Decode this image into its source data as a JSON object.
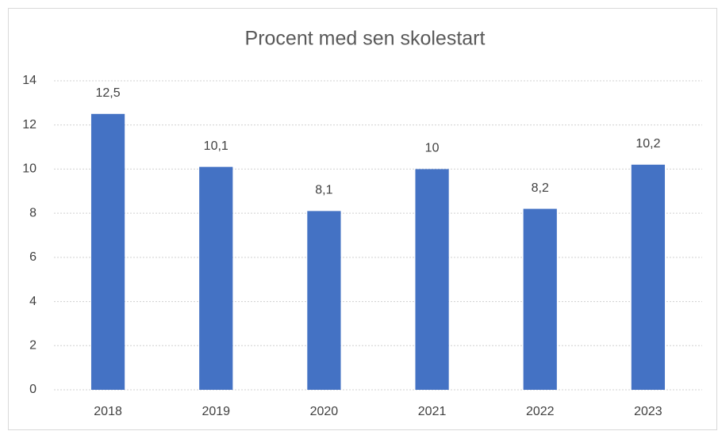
{
  "chart_data": {
    "type": "bar",
    "title": "Procent med sen skolestart",
    "categories": [
      "2018",
      "2019",
      "2020",
      "2021",
      "2022",
      "2023"
    ],
    "values": [
      12.5,
      10.1,
      8.1,
      10,
      8.2,
      10.2
    ],
    "value_labels": [
      "12,5",
      "10,1",
      "8,1",
      "10",
      "8,2",
      "10,2"
    ],
    "color": "#4472c4",
    "ylim": [
      0,
      14
    ],
    "yticks": [
      0,
      2,
      4,
      6,
      8,
      10,
      12,
      14
    ],
    "grid": true
  }
}
